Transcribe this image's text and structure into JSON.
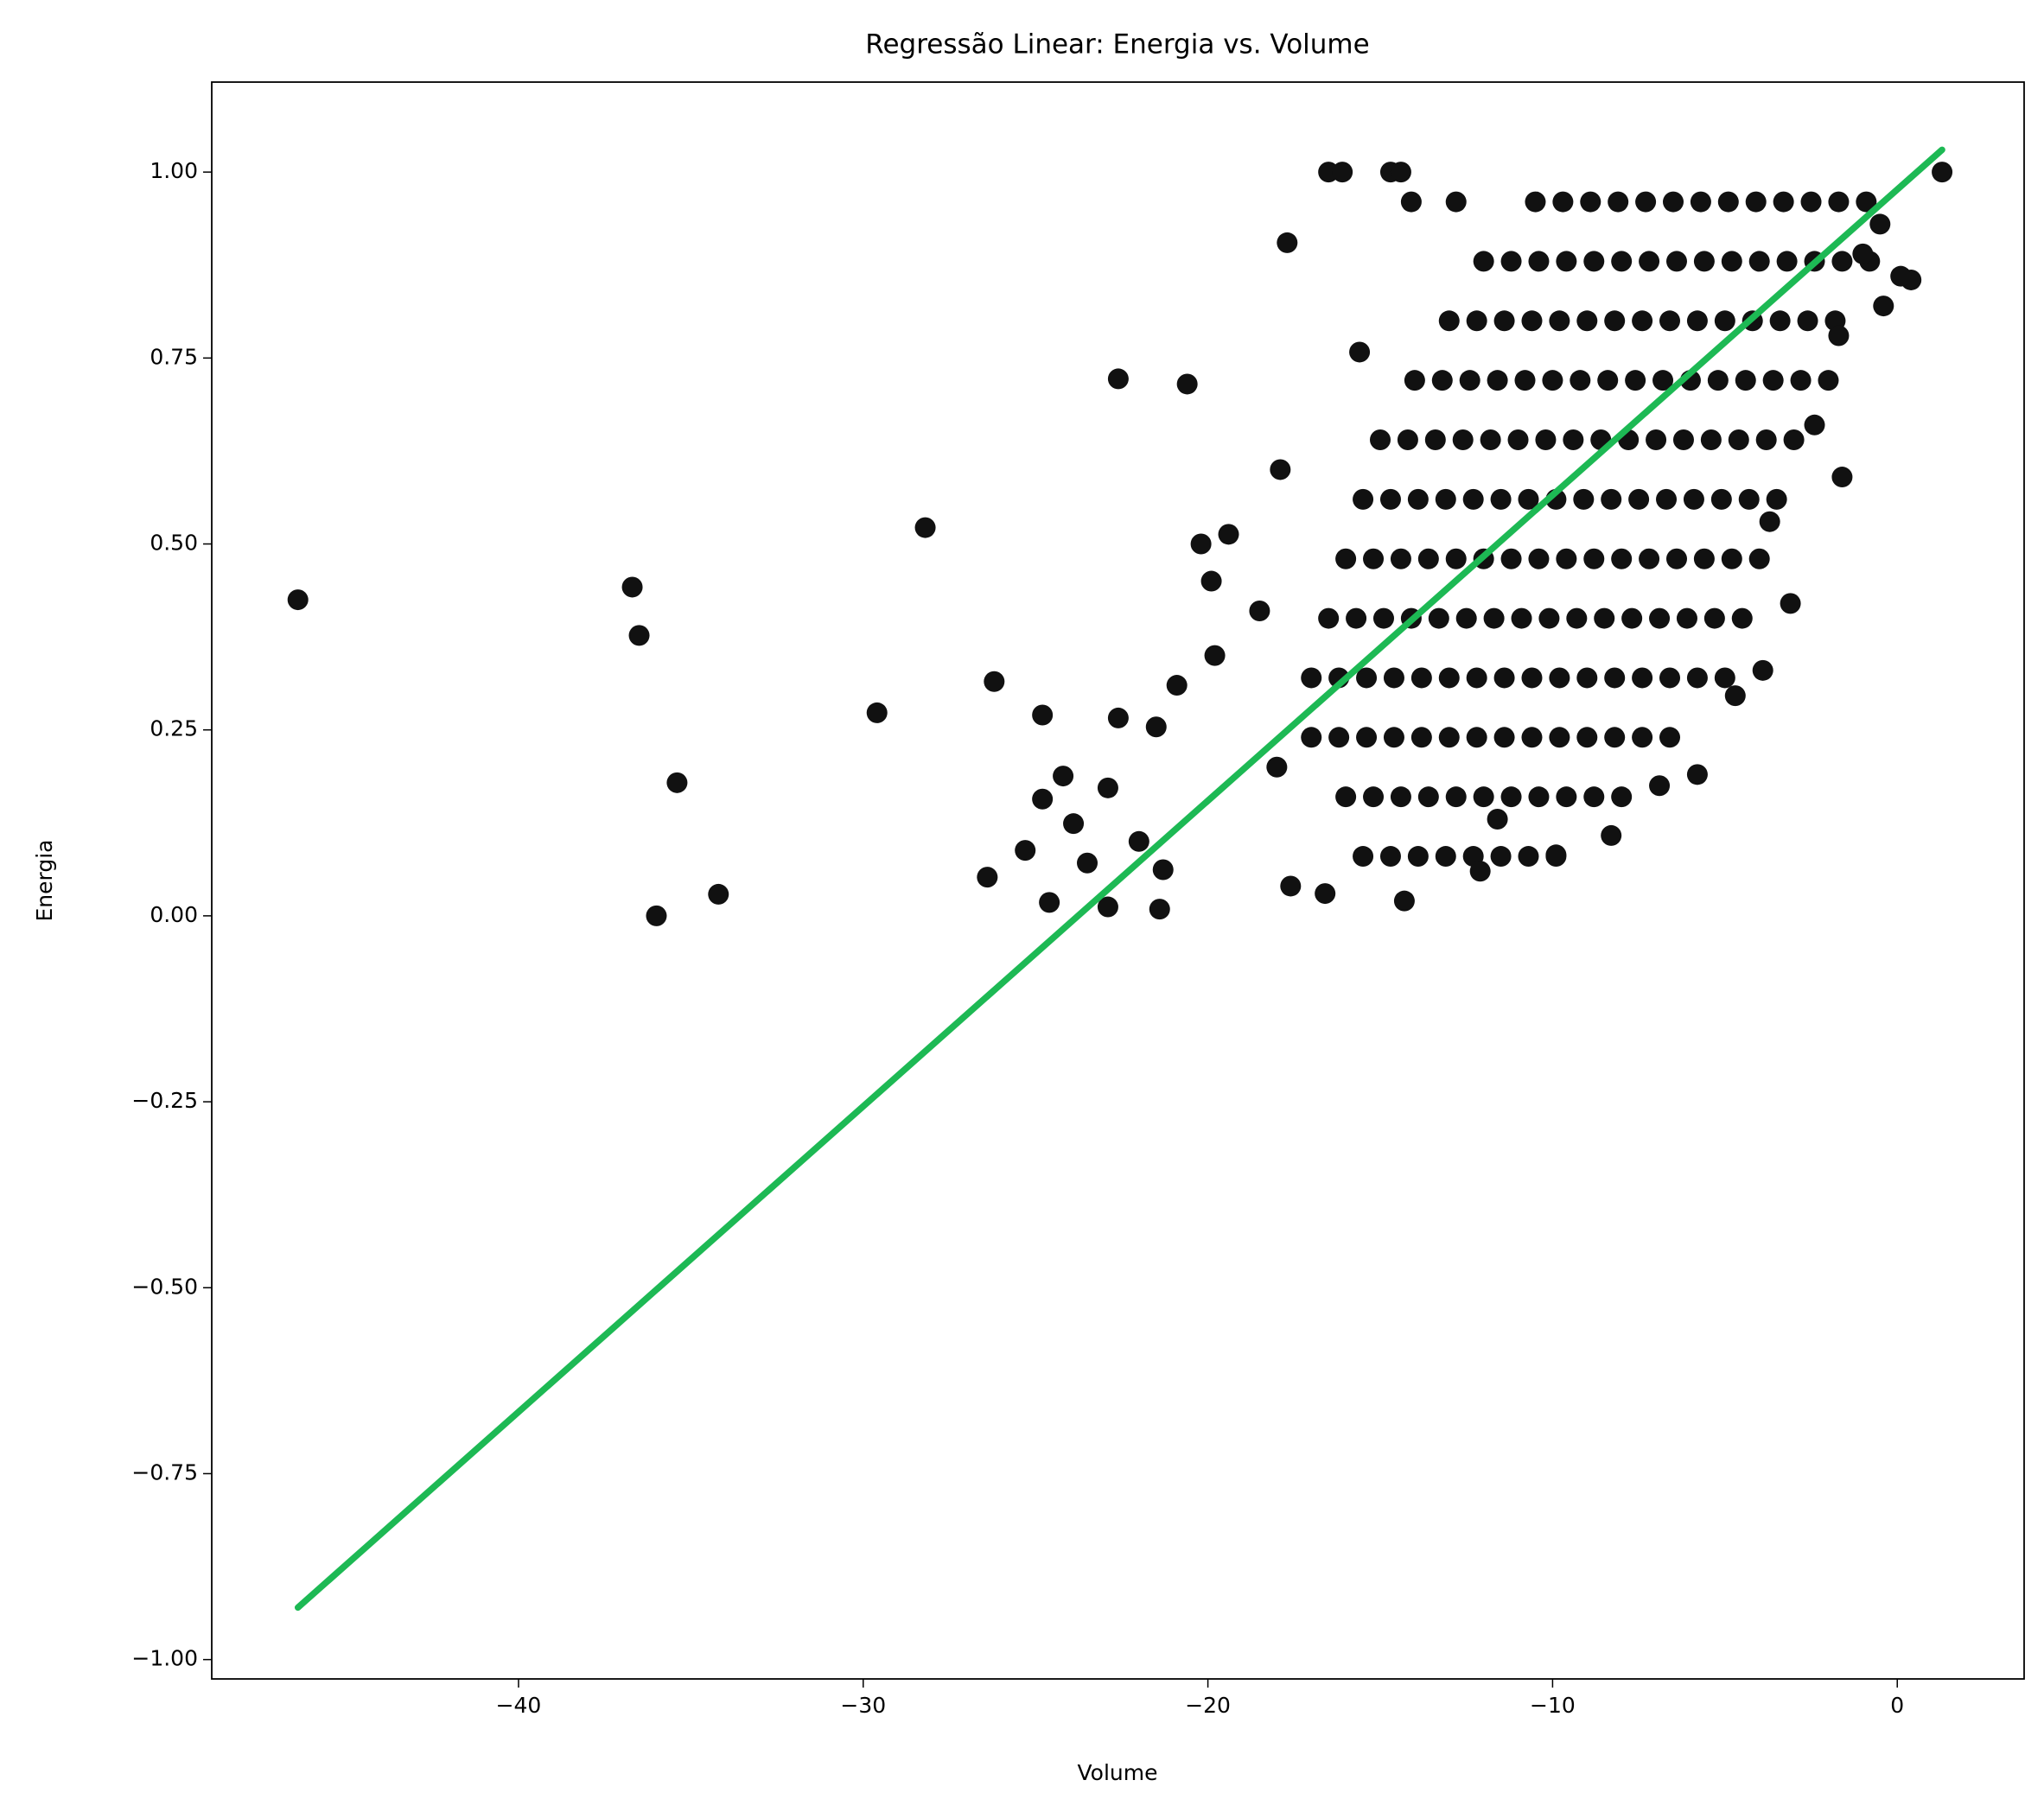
{
  "chart_data": {
    "type": "scatter",
    "title": "Regressão Linear: Energia vs. Volume",
    "x_label": "Volume",
    "y_label": "Energia",
    "xlim": [
      -48.9,
      3.68
    ],
    "ylim": [
      -1.026,
      1.121
    ],
    "xticks": [
      {
        "value": -40,
        "label": "−40"
      },
      {
        "value": -30,
        "label": "−30"
      },
      {
        "value": -20,
        "label": "−20"
      },
      {
        "value": -10,
        "label": "−10"
      },
      0
    ],
    "yticks": [
      {
        "value": -1,
        "label": "−1.00"
      },
      {
        "value": -0.75,
        "label": "−0.75"
      },
      {
        "value": -0.5,
        "label": "−0.50"
      },
      {
        "value": -0.25,
        "label": "−0.25"
      },
      {
        "value": 0,
        "label": "0.00"
      },
      {
        "value": 0.25,
        "label": "0.25"
      },
      {
        "value": 0.5,
        "label": "0.50"
      },
      {
        "value": 0.75,
        "label": "0.75"
      },
      {
        "value": 1,
        "label": "1.00"
      }
    ],
    "color": "#111111",
    "x": [
      -15.5,
      -14.7,
      -13.9,
      -13.1,
      -12.3,
      -11.5,
      -10.7,
      -9.9,
      -16,
      -15.2,
      -14.4,
      -13.6,
      -12.8,
      -12,
      -11.2,
      -10.4,
      -9.6,
      -8.8,
      -8,
      -17,
      -16.2,
      -15.4,
      -14.6,
      -13.8,
      -13,
      -12.2,
      -11.4,
      -10.6,
      -9.8,
      -9,
      -8.2,
      -7.4,
      -6.6,
      -17,
      -16.2,
      -15.4,
      -14.6,
      -13.8,
      -13,
      -12.2,
      -11.4,
      -10.6,
      -9.8,
      -9,
      -8.2,
      -7.4,
      -6.6,
      -5.8,
      -5,
      -16.5,
      -15.7,
      -14.9,
      -14.1,
      -13.3,
      -12.5,
      -11.7,
      -10.9,
      -10.1,
      -9.3,
      -8.5,
      -7.7,
      -6.9,
      -6.1,
      -5.3,
      -4.5,
      -16,
      -15.2,
      -14.4,
      -13.6,
      -12.8,
      -12,
      -11.2,
      -10.4,
      -9.6,
      -8.8,
      -8,
      -7.2,
      -6.4,
      -5.6,
      -4.8,
      -4,
      -15.5,
      -14.7,
      -13.9,
      -13.1,
      -12.3,
      -11.5,
      -10.7,
      -9.9,
      -9.1,
      -8.3,
      -7.5,
      -6.7,
      -5.9,
      -5.1,
      -4.3,
      -3.5,
      -15,
      -14.2,
      -13.4,
      -12.6,
      -11.8,
      -11,
      -10.2,
      -9.4,
      -8.6,
      -7.8,
      -7,
      -6.2,
      -5.4,
      -4.6,
      -3.8,
      -3,
      -14,
      -13.2,
      -12.4,
      -11.6,
      -10.8,
      -10,
      -9.2,
      -8.4,
      -7.6,
      -6.8,
      -6,
      -5.2,
      -4.4,
      -3.6,
      -2.8,
      -2,
      -13,
      -12.2,
      -11.4,
      -10.6,
      -9.8,
      -9,
      -8.2,
      -7.4,
      -6.6,
      -5.8,
      -5,
      -4.2,
      -3.4,
      -2.6,
      -1.8,
      -12,
      -11.2,
      -10.4,
      -9.6,
      -8.8,
      -8,
      -7.2,
      -6.4,
      -5.6,
      -4.8,
      -4,
      -3.2,
      -2.4,
      -1.6,
      -0.8,
      -10.5,
      -9.7,
      -8.9,
      -8.1,
      -7.3,
      -6.5,
      -5.7,
      -4.9,
      -4.1,
      -3.3,
      -2.5,
      -1.7,
      -0.9,
      -46.4,
      -36.7,
      -36.5,
      -36,
      -35.4,
      -34.2,
      -29.6,
      -28.2,
      -26.2,
      -26.4,
      -25.3,
      -24.8,
      -24.6,
      -24.2,
      -24.8,
      -23.9,
      -23.5,
      -22.9,
      -22.9,
      -22.6,
      -22.6,
      -22,
      -21.5,
      -21.4,
      -21.3,
      -20.6,
      -20.2,
      -19.4,
      -19.9,
      -17.7,
      -17.9,
      -16.5,
      -16.1,
      -14.7,
      -14.4,
      -14.1,
      -12.8,
      -15.6,
      -20.9,
      -19.8,
      -18.5,
      -18,
      -17.6,
      -16.6,
      -14.3,
      1.3,
      0.4,
      0.1,
      -0.4,
      -1.6,
      -3.9,
      -3.1,
      -4.7,
      -5.8,
      -6.9,
      -8.3,
      -9.9,
      -12.1,
      -11.6,
      -0.5,
      -1,
      -1.7,
      -2.4,
      -3.7
    ],
    "y": [
      0.08,
      0.08,
      0.08,
      0.08,
      0.08,
      0.08,
      0.08,
      0.08,
      0.16,
      0.16,
      0.16,
      0.16,
      0.16,
      0.16,
      0.16,
      0.16,
      0.16,
      0.16,
      0.16,
      0.24,
      0.24,
      0.24,
      0.24,
      0.24,
      0.24,
      0.24,
      0.24,
      0.24,
      0.24,
      0.24,
      0.24,
      0.24,
      0.24,
      0.32,
      0.32,
      0.32,
      0.32,
      0.32,
      0.32,
      0.32,
      0.32,
      0.32,
      0.32,
      0.32,
      0.32,
      0.32,
      0.32,
      0.32,
      0.32,
      0.4,
      0.4,
      0.4,
      0.4,
      0.4,
      0.4,
      0.4,
      0.4,
      0.4,
      0.4,
      0.4,
      0.4,
      0.4,
      0.4,
      0.4,
      0.4,
      0.48,
      0.48,
      0.48,
      0.48,
      0.48,
      0.48,
      0.48,
      0.48,
      0.48,
      0.48,
      0.48,
      0.48,
      0.48,
      0.48,
      0.48,
      0.48,
      0.56,
      0.56,
      0.56,
      0.56,
      0.56,
      0.56,
      0.56,
      0.56,
      0.56,
      0.56,
      0.56,
      0.56,
      0.56,
      0.56,
      0.56,
      0.56,
      0.64,
      0.64,
      0.64,
      0.64,
      0.64,
      0.64,
      0.64,
      0.64,
      0.64,
      0.64,
      0.64,
      0.64,
      0.64,
      0.64,
      0.64,
      0.64,
      0.72,
      0.72,
      0.72,
      0.72,
      0.72,
      0.72,
      0.72,
      0.72,
      0.72,
      0.72,
      0.72,
      0.72,
      0.72,
      0.72,
      0.72,
      0.72,
      0.8,
      0.8,
      0.8,
      0.8,
      0.8,
      0.8,
      0.8,
      0.8,
      0.8,
      0.8,
      0.8,
      0.8,
      0.8,
      0.8,
      0.8,
      0.88,
      0.88,
      0.88,
      0.88,
      0.88,
      0.88,
      0.88,
      0.88,
      0.88,
      0.88,
      0.88,
      0.88,
      0.88,
      0.88,
      0.88,
      0.96,
      0.96,
      0.96,
      0.96,
      0.96,
      0.96,
      0.96,
      0.96,
      0.96,
      0.96,
      0.96,
      0.96,
      0.96,
      0.425,
      0.442,
      0.377,
      0,
      0.179,
      0.029,
      0.273,
      0.522,
      0.315,
      0.052,
      0.088,
      0.27,
      0.018,
      0.188,
      0.157,
      0.124,
      0.071,
      0.172,
      0.012,
      0.722,
      0.266,
      0.1,
      0.254,
      0.009,
      0.062,
      0.715,
      0.5,
      0.513,
      0.45,
      0.905,
      0.6,
      1,
      1,
      1,
      1,
      0.96,
      0.96,
      0.758,
      0.31,
      0.35,
      0.41,
      0.2,
      0.04,
      0.03,
      0.02,
      1,
      0.855,
      0.86,
      0.82,
      0.59,
      0.33,
      0.42,
      0.296,
      0.19,
      0.175,
      0.108,
      0.082,
      0.06,
      0.13,
      0.93,
      0.89,
      0.78,
      0.66,
      0.53
    ],
    "fit": {
      "x": [
        -46.4,
        1.3
      ],
      "y": [
        -0.93,
        1.03
      ],
      "color": "#1db954"
    }
  }
}
